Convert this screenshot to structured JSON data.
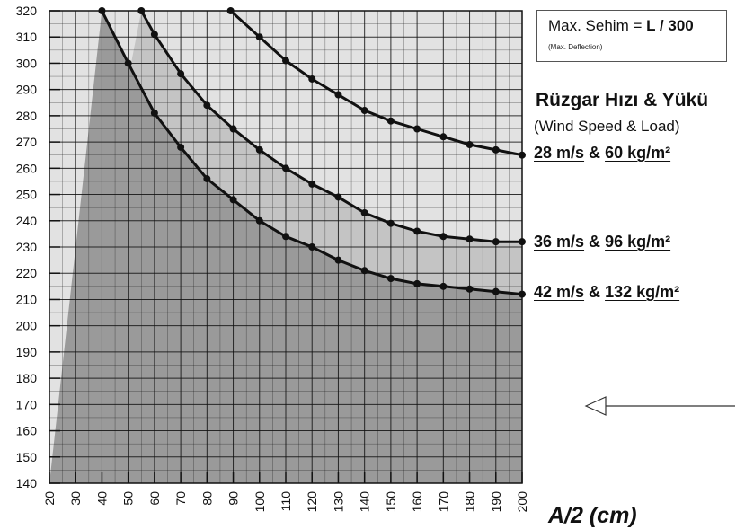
{
  "deflection": {
    "label": "Max. Sehim = ",
    "value": "L / 300",
    "sub": "(Max. Deflection)"
  },
  "wind": {
    "title": "Rüzgar Hızı & Yükü",
    "subtitle": "(Wind Speed & Load)"
  },
  "series_labels": [
    {
      "speed": "28 m/s",
      "amp": " & ",
      "load": "60 kg/m²"
    },
    {
      "speed": "36 m/s",
      "amp": " & ",
      "load": "96 kg/m²"
    },
    {
      "speed": "42 m/s",
      "amp": " & ",
      "load": "132 kg/m²"
    }
  ],
  "chart_data": {
    "type": "line",
    "xlabel": "A/2 (cm)",
    "ylabel": "",
    "xlim": [
      20,
      200
    ],
    "ylim": [
      140,
      320
    ],
    "x_ticks": [
      20,
      30,
      40,
      50,
      60,
      70,
      80,
      90,
      100,
      110,
      120,
      130,
      140,
      150,
      160,
      170,
      180,
      190,
      200
    ],
    "y_ticks": [
      140,
      150,
      160,
      170,
      180,
      190,
      200,
      210,
      220,
      230,
      240,
      250,
      260,
      270,
      280,
      290,
      300,
      310,
      320
    ],
    "grid": true,
    "series": [
      {
        "name": "28 m/s & 60 kg/m²",
        "x": [
          89,
          100,
          110,
          120,
          130,
          140,
          150,
          160,
          170,
          180,
          190,
          200
        ],
        "y": [
          320,
          310,
          301,
          294,
          288,
          282,
          278,
          275,
          272,
          269,
          267,
          265
        ]
      },
      {
        "name": "36 m/s & 96 kg/m²",
        "x": [
          55,
          60,
          70,
          80,
          90,
          100,
          110,
          120,
          130,
          140,
          150,
          160,
          170,
          180,
          190,
          200
        ],
        "y": [
          320,
          311,
          296,
          284,
          275,
          267,
          260,
          254,
          249,
          243,
          239,
          236,
          234,
          233,
          232,
          232
        ]
      },
      {
        "name": "42 m/s & 132 kg/m²",
        "x": [
          40,
          50,
          60,
          70,
          80,
          90,
          100,
          110,
          120,
          130,
          140,
          150,
          160,
          170,
          180,
          190,
          200
        ],
        "y": [
          320,
          300,
          281,
          268,
          256,
          248,
          240,
          234,
          230,
          225,
          221,
          218,
          216,
          215,
          214,
          213,
          212
        ]
      }
    ],
    "colors": {
      "dark_region": "#9a9a9a",
      "mid_region": "#c4c4c4",
      "light_region": "#e2e2e2",
      "curve": "#111111"
    }
  }
}
